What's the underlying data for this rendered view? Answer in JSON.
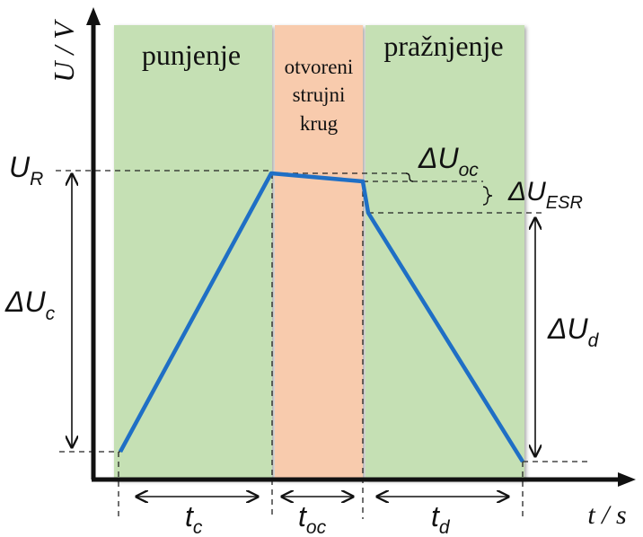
{
  "axes": {
    "y_label": "U / V",
    "x_label": "t / s"
  },
  "regions": [
    {
      "id": "charging",
      "label": "punjenje",
      "color": "#c5e0b4"
    },
    {
      "id": "open_circuit",
      "label_lines": [
        "otvoreni",
        "strujni",
        "krug"
      ],
      "color": "#f8cbad"
    },
    {
      "id": "discharging",
      "label": "pražnjenje",
      "color": "#c5e0b4"
    }
  ],
  "levels": {
    "UR": "U",
    "UR_sub": "R",
    "dUc": "ΔU",
    "dUc_sub": "c",
    "dUoc": "ΔU",
    "dUoc_sub": "oc",
    "dUesr": "ΔU",
    "dUesr_sub": "ESR",
    "dUd": "ΔU",
    "dUd_sub": "d"
  },
  "durations": {
    "tc": "t",
    "tc_sub": "c",
    "toc": "t",
    "toc_sub": "oc",
    "td": "t",
    "td_sub": "d"
  },
  "colors": {
    "curve": "#1f6fc5",
    "axis": "#111111"
  }
}
